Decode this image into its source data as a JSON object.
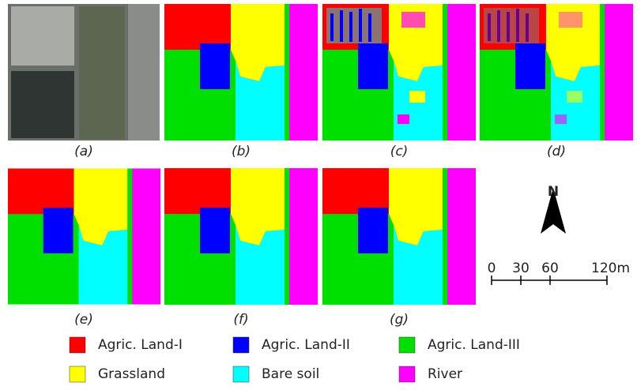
{
  "panels": [
    {
      "label": "(a)"
    },
    {
      "label": "(b)"
    },
    {
      "label": "(c)"
    },
    {
      "label": "(d)"
    },
    {
      "label": "(e)"
    },
    {
      "label": "(f)"
    },
    {
      "label": "(g)"
    }
  ],
  "legend": [
    {
      "name": "Agric. Land-I",
      "color": "#ff0000"
    },
    {
      "name": "Agric. Land-II",
      "color": "#0000ff"
    },
    {
      "name": "Agric. Land-III",
      "color": "#00e000"
    },
    {
      "name": "Grassland",
      "color": "#ffff00"
    },
    {
      "name": "Bare soil",
      "color": "#00ffff"
    },
    {
      "name": "River",
      "color": "#ff00ff"
    }
  ],
  "north": "N",
  "scale": {
    "labels": [
      "0",
      "30",
      "60",
      "120m"
    ]
  }
}
